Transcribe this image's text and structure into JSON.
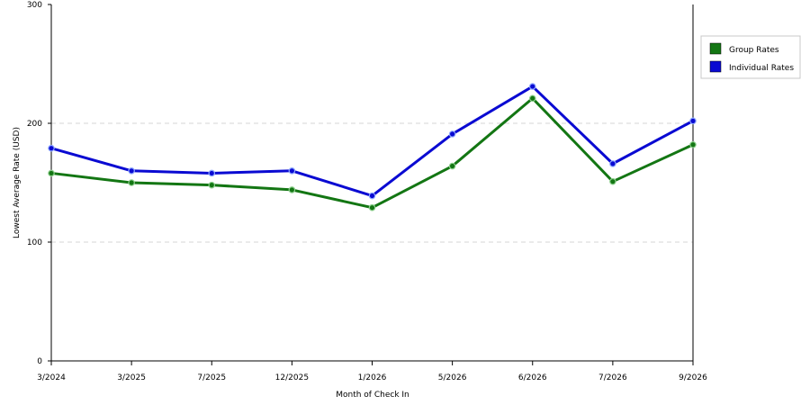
{
  "chart_data": {
    "type": "line",
    "categories": [
      "3/2024",
      "3/2025",
      "7/2025",
      "12/2025",
      "1/2026",
      "5/2026",
      "6/2026",
      "7/2026",
      "9/2026"
    ],
    "series": [
      {
        "name": "Group Rates",
        "color": "#137613",
        "values": [
          158,
          150,
          148,
          144,
          129,
          164,
          221,
          151,
          182
        ]
      },
      {
        "name": "Individual Rates",
        "color": "#0a0ad2",
        "values": [
          179,
          160,
          158,
          160,
          139,
          191,
          231,
          166,
          202
        ]
      }
    ],
    "xlabel": "Month of Check In",
    "ylabel": "Lowest Average Rate (USD)",
    "ylim": [
      0,
      300
    ],
    "yticks": [
      0,
      100,
      200,
      300
    ],
    "grid": "horizontal-dashed",
    "legend_position": "right"
  }
}
